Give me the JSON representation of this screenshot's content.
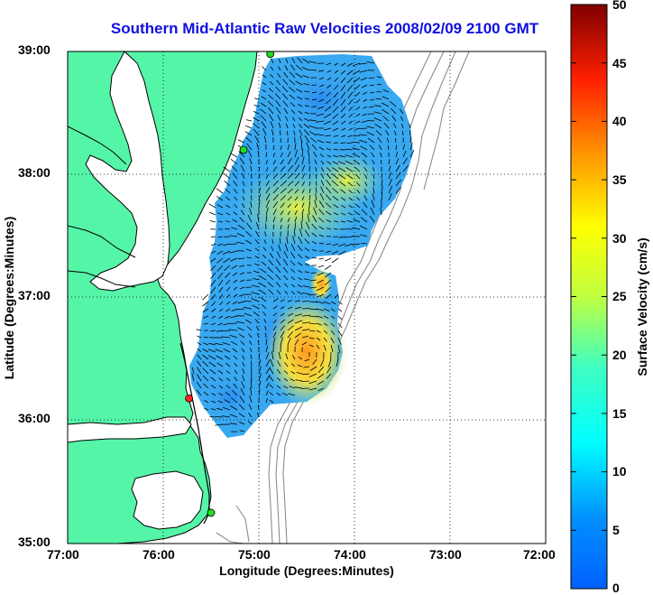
{
  "title": "Southern Mid-Atlantic Raw Velocities 2008/02/09 2100 GMT",
  "map": {
    "xlabel": "Longitude (Degrees:Minutes)",
    "ylabel": "Latitude (Degrees:Minutes)",
    "lon_range": [
      -77,
      -72
    ],
    "lat_range": [
      35,
      39
    ],
    "lon_ticks": [
      "77:00",
      "76:00",
      "75:00",
      "74:00",
      "73:00",
      "72:00"
    ],
    "lat_ticks": [
      "39:00",
      "38:00",
      "37:00",
      "36:00",
      "35:00"
    ],
    "grid": "dotted",
    "colors": {
      "land": "#55f5a8",
      "coast_line": "#000000",
      "bathymetry": "#8c8c8c",
      "sites": "#22dd22",
      "active_site": "#ff2222"
    }
  },
  "colorbar": {
    "label": "Surface Velocity (cm/s)",
    "min": 0,
    "max": 50,
    "ticks": [
      "50",
      "45",
      "40",
      "35",
      "30",
      "25",
      "20",
      "15",
      "10",
      "5",
      "0"
    ],
    "colormap": "jet"
  },
  "sites": [
    {
      "lon": -74.88,
      "lat": 38.98,
      "active": false
    },
    {
      "lon": -75.16,
      "lat": 38.2,
      "active": false
    },
    {
      "lon": -75.73,
      "lat": 36.18,
      "active": true
    },
    {
      "lon": -75.5,
      "lat": 35.25,
      "active": false
    }
  ]
}
